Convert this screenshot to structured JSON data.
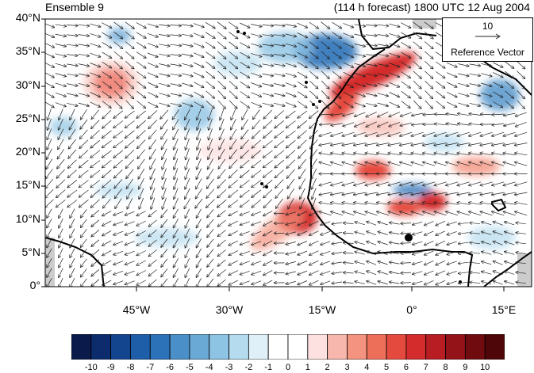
{
  "title_left": "Ensemble 9",
  "title_right": "(114 h forecast) 1800 UTC 12 Aug 2004",
  "lat_labels": [
    "40°N",
    "35°N",
    "30°N",
    "25°N",
    "20°N",
    "15°N",
    "10°N",
    "5°N",
    "0°"
  ],
  "lon_labels": [
    "45°W",
    "30°W",
    "15°W",
    "0°",
    "15°E"
  ],
  "reference_vector": {
    "value": "10",
    "label": "Reference Vector"
  },
  "colorbar": {
    "labels": [
      "-10",
      "-9",
      "-8",
      "-7",
      "-6",
      "-5",
      "-4",
      "-3",
      "-2",
      "-1",
      "0",
      "1",
      "2",
      "3",
      "4",
      "5",
      "6",
      "7",
      "8",
      "9",
      "10"
    ],
    "colors": [
      "#0a1a4a",
      "#0c2c6e",
      "#13458f",
      "#1e5ea8",
      "#2c72b8",
      "#4a8fc8",
      "#6aa8d6",
      "#8dc3e3",
      "#b5dbee",
      "#dff0f8",
      "#ffffff",
      "#ffffff",
      "#fde0e0",
      "#f7b7ad",
      "#f4937f",
      "#ee6f59",
      "#e54a3e",
      "#d42c2c",
      "#b81d24",
      "#931319",
      "#700c0f",
      "#4f0608"
    ]
  },
  "colors": {
    "land_missing": "#cccccc",
    "coast": "#000000",
    "vector": "#222222"
  }
}
